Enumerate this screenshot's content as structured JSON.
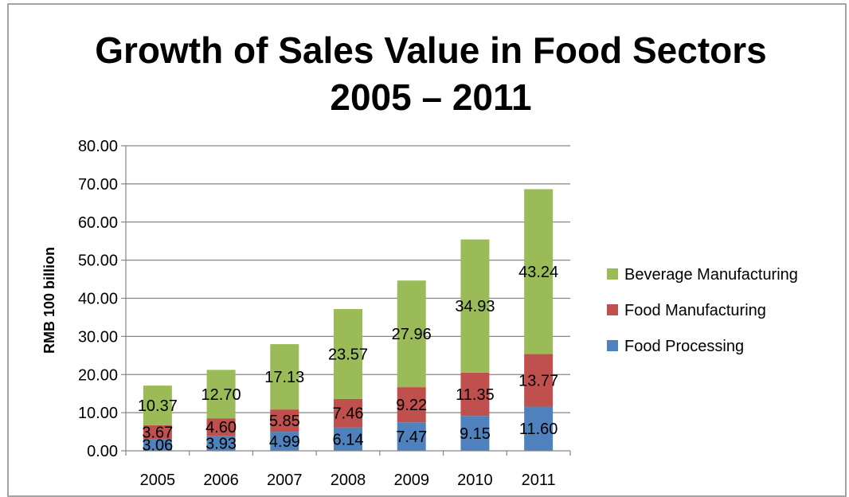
{
  "chart_data": {
    "type": "bar",
    "stacked": true,
    "title_lines": [
      "Growth of Sales Value in Food Sectors",
      "2005 – 2011"
    ],
    "xlabel": "",
    "ylabel": "RMB 100 billion",
    "ylim": [
      0,
      80
    ],
    "y_ticks": [
      "0.00",
      "10.00",
      "20.00",
      "30.00",
      "40.00",
      "50.00",
      "60.00",
      "70.00",
      "80.00"
    ],
    "grid": true,
    "legend_position": "right",
    "categories": [
      "2005",
      "2006",
      "2007",
      "2008",
      "2009",
      "2010",
      "2011"
    ],
    "series": [
      {
        "name": "Food Processing",
        "color": "#4f81bd",
        "values": [
          3.06,
          3.93,
          4.99,
          6.14,
          7.47,
          9.15,
          11.6
        ],
        "labels": [
          "3.06",
          "3.93",
          "4.99",
          "6.14",
          "7.47",
          "9.15",
          "11.60"
        ]
      },
      {
        "name": "Food Manufacturing",
        "color": "#c0504d",
        "values": [
          3.67,
          4.6,
          5.85,
          7.46,
          9.22,
          11.35,
          13.77
        ],
        "labels": [
          "3.67",
          "4.60",
          "5.85",
          "7.46",
          "9.22",
          "11.35",
          "13.77"
        ]
      },
      {
        "name": "Beverage Manufacturing",
        "color": "#9bbb59",
        "values": [
          10.37,
          12.7,
          17.13,
          23.57,
          27.96,
          34.93,
          43.24
        ],
        "labels": [
          "10.37",
          "12.70",
          "17.13",
          "23.57",
          "27.96",
          "34.93",
          "43.24"
        ]
      }
    ],
    "legend_order": [
      "Beverage Manufacturing",
      "Food Manufacturing",
      "Food Processing"
    ]
  }
}
